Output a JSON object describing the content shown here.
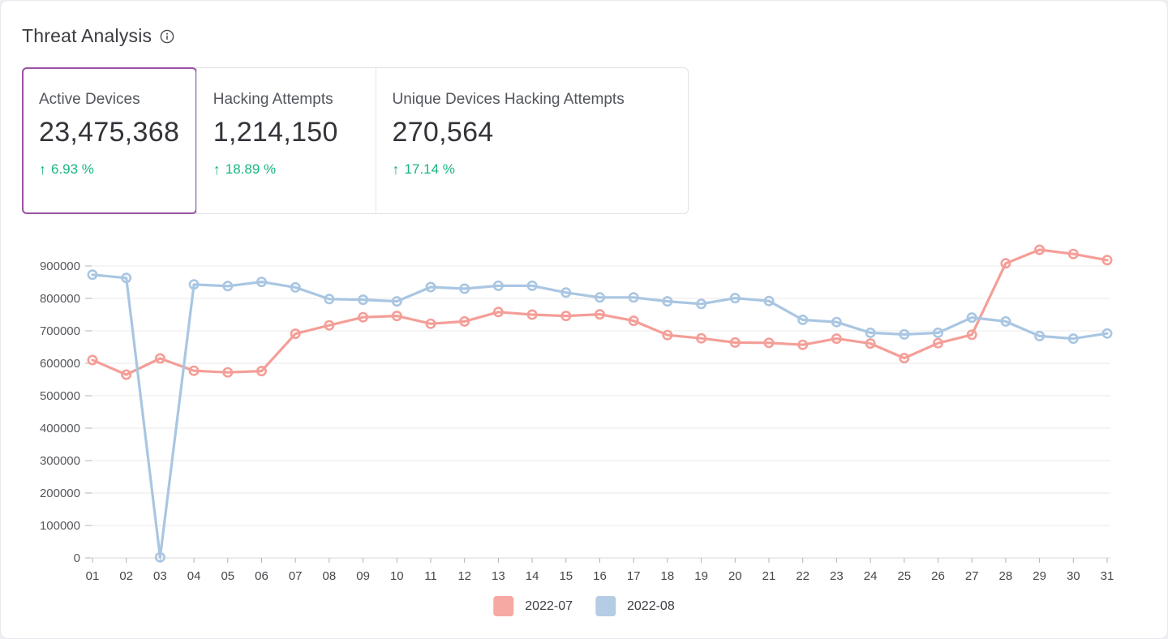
{
  "page": {
    "title": "Threat Analysis"
  },
  "icons": {
    "up_arrow": "↑",
    "info": "i"
  },
  "colors": {
    "accent_purple": "#9a51a3",
    "accent_green": "#17b584",
    "series_2022_07": "#f49e98",
    "series_2022_08": "#a9c6e2",
    "legend_2022_07": "#f6a9a2",
    "legend_2022_08": "#b5cce5",
    "gridline": "#e8e8ea",
    "axis_line": "#d8dadd"
  },
  "stats": [
    {
      "label": "Active Devices",
      "value": "23,475,368",
      "delta": "6.93 %",
      "selected": true
    },
    {
      "label": "Hacking Attempts",
      "value": "1,214,150",
      "delta": "18.89 %",
      "selected": false
    },
    {
      "label": "Unique Devices Hacking Attempts",
      "value": "270,564",
      "delta": "17.14 %",
      "selected": false
    }
  ],
  "chart_data": {
    "type": "line",
    "title": "",
    "xlabel": "",
    "ylabel": "",
    "grid": "horizontal",
    "legend_position": "bottom",
    "ylim": [
      0,
      1000000
    ],
    "yticks": [
      0,
      100000,
      200000,
      300000,
      400000,
      500000,
      600000,
      700000,
      800000,
      900000
    ],
    "categories": [
      "01",
      "02",
      "03",
      "04",
      "05",
      "06",
      "07",
      "08",
      "09",
      "10",
      "11",
      "12",
      "13",
      "14",
      "15",
      "16",
      "17",
      "18",
      "19",
      "20",
      "21",
      "22",
      "23",
      "24",
      "25",
      "26",
      "27",
      "28",
      "29",
      "30",
      "31"
    ],
    "series": [
      {
        "name": "2022-07",
        "color": "#f49e98",
        "values": [
          610000,
          565000,
          615000,
          577000,
          572000,
          576000,
          691000,
          717000,
          742000,
          746000,
          722000,
          729000,
          758000,
          750000,
          746000,
          751000,
          731000,
          687000,
          677000,
          664000,
          663000,
          657000,
          676000,
          661000,
          616000,
          662000,
          688000,
          908000,
          950000,
          937000,
          918000
        ]
      },
      {
        "name": "2022-08",
        "color": "#a9c6e2",
        "values": [
          873000,
          863000,
          2000,
          843000,
          838000,
          851000,
          834000,
          798000,
          796000,
          791000,
          835000,
          830000,
          839000,
          839000,
          818000,
          803000,
          803000,
          791000,
          783000,
          801000,
          792000,
          734000,
          727000,
          694000,
          689000,
          694000,
          741000,
          729000,
          684000,
          676000,
          692000
        ]
      }
    ]
  }
}
